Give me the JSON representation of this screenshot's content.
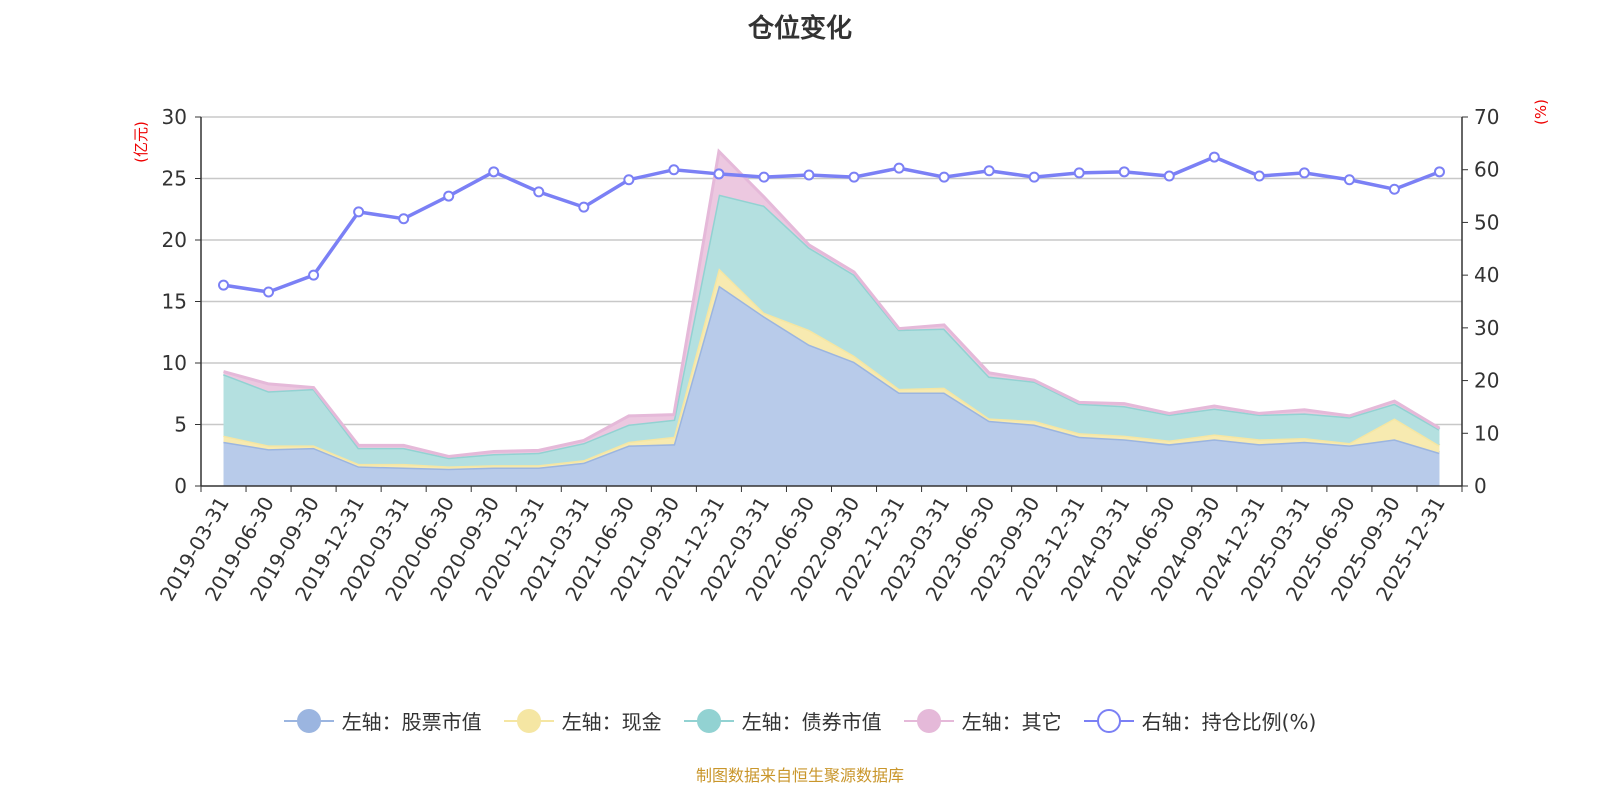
{
  "chart_data": {
    "type": "area",
    "title": "仓位变化",
    "ylabel_left": "(亿元)",
    "ylabel_right": "(%)",
    "ylim_left": [
      0,
      30
    ],
    "yticks_left": [
      0,
      5,
      10,
      15,
      20,
      25,
      30
    ],
    "ylim_right": [
      0,
      70
    ],
    "yticks_right": [
      0,
      10,
      20,
      30,
      40,
      50,
      60,
      70
    ],
    "grid": true,
    "legend_position": "bottom",
    "categories": [
      "2019-03-31",
      "2019-06-30",
      "2019-09-30",
      "2019-12-31",
      "2020-03-31",
      "2020-06-30",
      "2020-09-30",
      "2020-12-31",
      "2021-03-31",
      "2021-06-30",
      "2021-09-30",
      "2021-12-31",
      "2022-03-31",
      "2022-06-30",
      "2022-09-30",
      "2022-12-31",
      "2023-03-31",
      "2023-06-30",
      "2023-09-30",
      "2023-12-31",
      "2024-03-31",
      "2024-06-30",
      "2024-09-30",
      "2024-12-31",
      "2025-03-31",
      "2025-06-30",
      "2025-09-30",
      "2025-12-31"
    ],
    "series": [
      {
        "name": "左轴：股票市值",
        "axis": "left",
        "stack": true,
        "color": "#9bb5e0",
        "fill": "#b8cbea",
        "values": [
          3.6,
          3.0,
          3.1,
          1.6,
          1.5,
          1.4,
          1.5,
          1.5,
          1.9,
          3.3,
          3.4,
          16.3,
          13.8,
          11.5,
          10.1,
          7.6,
          7.6,
          5.3,
          5.0,
          4.0,
          3.8,
          3.4,
          3.8,
          3.4,
          3.6,
          3.3,
          3.8,
          2.7
        ]
      },
      {
        "name": "左轴：现金",
        "axis": "left",
        "stack": true,
        "color": "#f5e6a3",
        "fill": "#f7eab0",
        "values": [
          0.5,
          0.3,
          0.2,
          0.2,
          0.3,
          0.2,
          0.2,
          0.2,
          0.2,
          0.3,
          0.6,
          1.4,
          0.3,
          1.2,
          0.5,
          0.3,
          0.4,
          0.2,
          0.3,
          0.3,
          0.3,
          0.3,
          0.4,
          0.4,
          0.3,
          0.2,
          1.7,
          0.6
        ]
      },
      {
        "name": "左轴：债券市值",
        "axis": "left",
        "stack": true,
        "color": "#92d2d2",
        "fill": "#b4e0e0",
        "values": [
          5.0,
          4.4,
          4.6,
          1.3,
          1.3,
          0.7,
          0.9,
          1.0,
          1.4,
          1.4,
          1.4,
          6.0,
          8.7,
          6.7,
          6.6,
          4.8,
          4.8,
          3.4,
          3.2,
          2.4,
          2.4,
          2.1,
          2.1,
          2.0,
          2.0,
          2.1,
          1.2,
          1.3
        ]
      },
      {
        "name": "左轴：其它",
        "axis": "left",
        "stack": true,
        "color": "#e5b9d9",
        "fill": "#ecc8e0",
        "values": [
          0.2,
          0.6,
          0.1,
          0.2,
          0.2,
          0.1,
          0.2,
          0.2,
          0.2,
          0.7,
          0.4,
          3.5,
          0.7,
          0.2,
          0.2,
          0.1,
          0.3,
          0.3,
          0.1,
          0.1,
          0.2,
          0.1,
          0.2,
          0.1,
          0.3,
          0.1,
          0.2,
          0.1
        ]
      },
      {
        "name": "右轴：持仓比例(%)",
        "axis": "right",
        "stack": false,
        "color": "#7b80f5",
        "values": [
          38.1,
          36.8,
          40.0,
          52.0,
          50.7,
          55.0,
          59.6,
          55.8,
          52.9,
          58.1,
          60.0,
          59.2,
          58.6,
          59.0,
          58.6,
          60.3,
          58.6,
          59.8,
          58.6,
          59.4,
          59.6,
          58.8,
          62.4,
          58.8,
          59.4,
          58.1,
          56.3,
          59.6
        ]
      }
    ]
  },
  "footer": "制图数据来自恒生聚源数据库"
}
